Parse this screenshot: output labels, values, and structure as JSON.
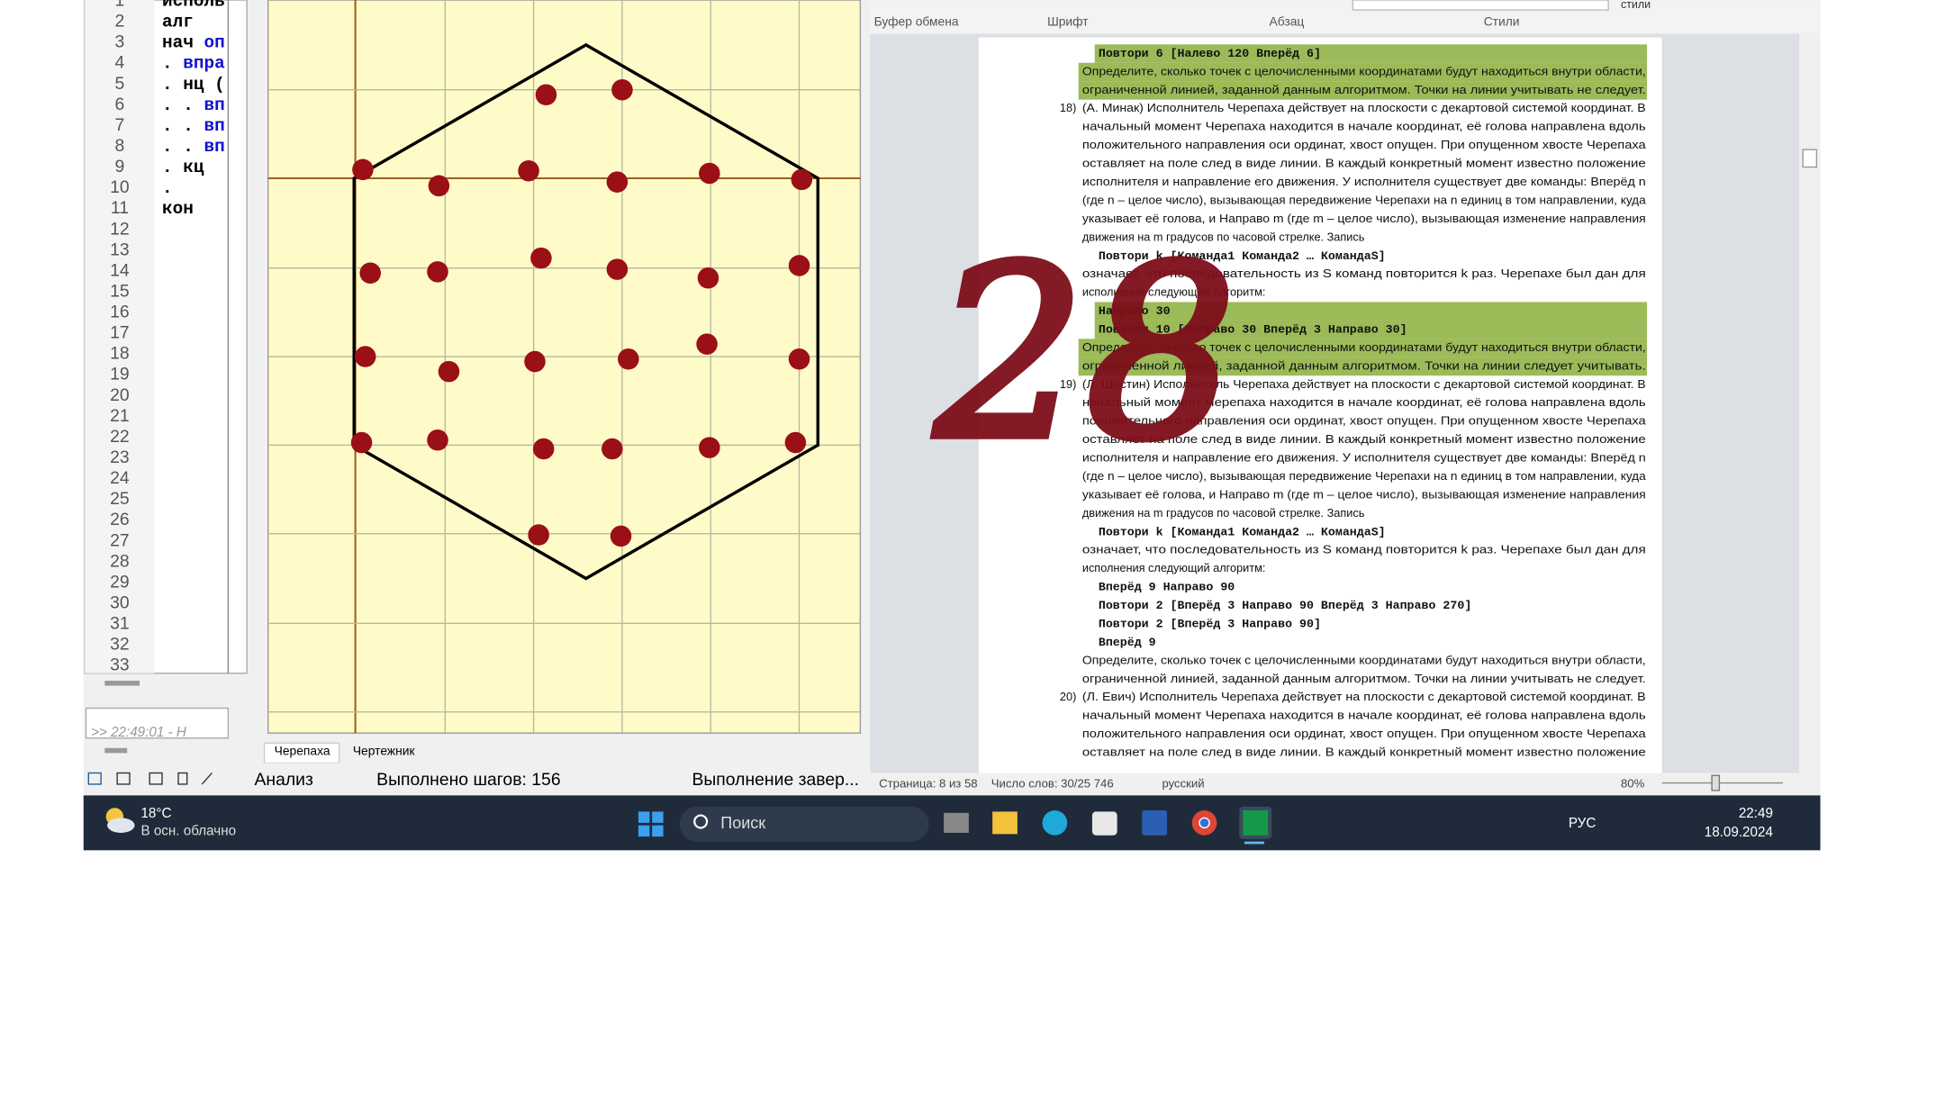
{
  "code_editor": {
    "line_numbers": [
      1,
      2,
      3,
      4,
      5,
      6,
      7,
      8,
      9,
      10,
      11,
      12,
      13,
      14,
      15,
      16,
      17,
      18,
      19,
      20,
      21,
      22,
      23,
      24,
      25,
      26,
      27,
      28,
      29,
      30,
      31,
      32,
      33
    ],
    "lines": [
      [
        "исполь"
      ],
      [
        "алг"
      ],
      [
        "нач",
        "оп"
      ],
      [
        ".",
        "впра"
      ],
      [
        ". нц ("
      ],
      [
        ". .",
        "вп"
      ],
      [
        ". .",
        "вп"
      ],
      [
        ". .",
        "вп"
      ],
      [
        ". кц"
      ],
      [
        "."
      ],
      [
        "кон"
      ]
    ],
    "console": ">> 22:49:01 - Н"
  },
  "tabs": [
    "Черепаха",
    "Чертежник"
  ],
  "status": {
    "analysis": "Анализ",
    "steps": "Выполнено шагов: 156",
    "run": "Выполнение завер..."
  },
  "ribbon": {
    "groups": [
      "Буфер обмена",
      "Шрифт",
      "Абзац",
      "Стили"
    ],
    "styles_button": "стили"
  },
  "document": {
    "markers": [
      "18)",
      "19)",
      "20)"
    ],
    "lines": [
      "Повтори 6 [Налево 120 Вперёд 6]",
      "Определите, сколько точек с целочисленными координатами будут находиться внутри области,",
      "ограниченной линией, заданной данным алгоритмом. Точки на линии учитывать не следует.",
      "(А. Минак) Исполнитель Черепаха действует на плоскости с декартовой системой координат. В",
      "начальный момент Черепаха находится в начале координат, её голова направлена вдоль",
      "положительного направления оси ординат, хвост опущен. При опущенном хвосте Черепаха",
      "оставляет на поле след в виде линии. В каждый конкретный момент известно положение",
      "исполнителя и направление его движения. У исполнителя существует две команды: Вперёд n",
      "(где n – целое число), вызывающая передвижение Черепахи на n единиц в том направлении, куда",
      "указывает её голова, и Направо m (где m – целое число), вызывающая изменение направления",
      "движения на m градусов по часовой стрелке. Запись",
      "Повтори k [Команда1 Команда2 … КомандаS]",
      "означает, что последовательность из S команд повторится k раз. Черепахе был дан для",
      "исполнения следующий алгоритм:",
      "Направо 30",
      "Повтори 10 [Направо 30 Вперёд 3 Направо 30]",
      "Определите, сколько точек с целочисленными координатами будут находиться внутри области,",
      "ограниченной линией, заданной данным алгоритмом. Точки на линии следует учитывать.",
      "(Л. Шастин) Исполнитель Черепаха действует на плоскости с декартовой системой координат. В",
      "начальный момент Черепаха находится в начале координат, её голова направлена вдоль",
      "положительного направления оси ординат, хвост опущен. При опущенном хвосте Черепаха",
      "оставляет на поле след в виде линии. В каждый конкретный момент известно положение",
      "исполнителя и направление его движения. У исполнителя существует две команды: Вперёд n",
      "(где n – целое число), вызывающая передвижение Черепахи на n единиц в том направлении, куда",
      "указывает её голова, и Направо m (где m – целое число), вызывающая изменение направления",
      "движения на m градусов по часовой стрелке. Запись",
      "Повтори k [Команда1 Команда2 … КомандаS]",
      "означает, что последовательность из S команд повторится k раз. Черепахе был дан для",
      "исполнения следующий алгоритм:",
      "Вперёд 9 Направо 90",
      "Повтори 2 [Вперёд 3 Направо 90 Вперёд 3 Направо 270]",
      "Повтори 2 [Вперёд 3 Направо 90]",
      "Вперёд 9",
      "Определите, сколько точек с целочисленными координатами будут находиться внутри области,",
      "ограниченной линией, заданной данным алгоритмом. Точки на линии учитывать не следует.",
      "(Л. Евич) Исполнитель Черепаха действует на плоскости с декартовой системой координат. В",
      "начальный момент Черепаха находится в начале координат, её голова направлена вдоль",
      "положительного направления оси ординат, хвост опущен. При опущенном хвосте Черепаха",
      "оставляет на поле след в виде линии. В каждый конкретный момент известно положение"
    ]
  },
  "handwritten_note": "28",
  "word_status": {
    "page": "Страница: 8 из 58",
    "words": "Число слов: 30/25 746",
    "language": "русский",
    "zoom": "80%"
  },
  "taskbar": {
    "temperature": "18°C",
    "weather": "В осн. облачно",
    "search": "Поиск",
    "keyboard": "РУС",
    "time": "22:49",
    "date": "18.09.2024"
  }
}
